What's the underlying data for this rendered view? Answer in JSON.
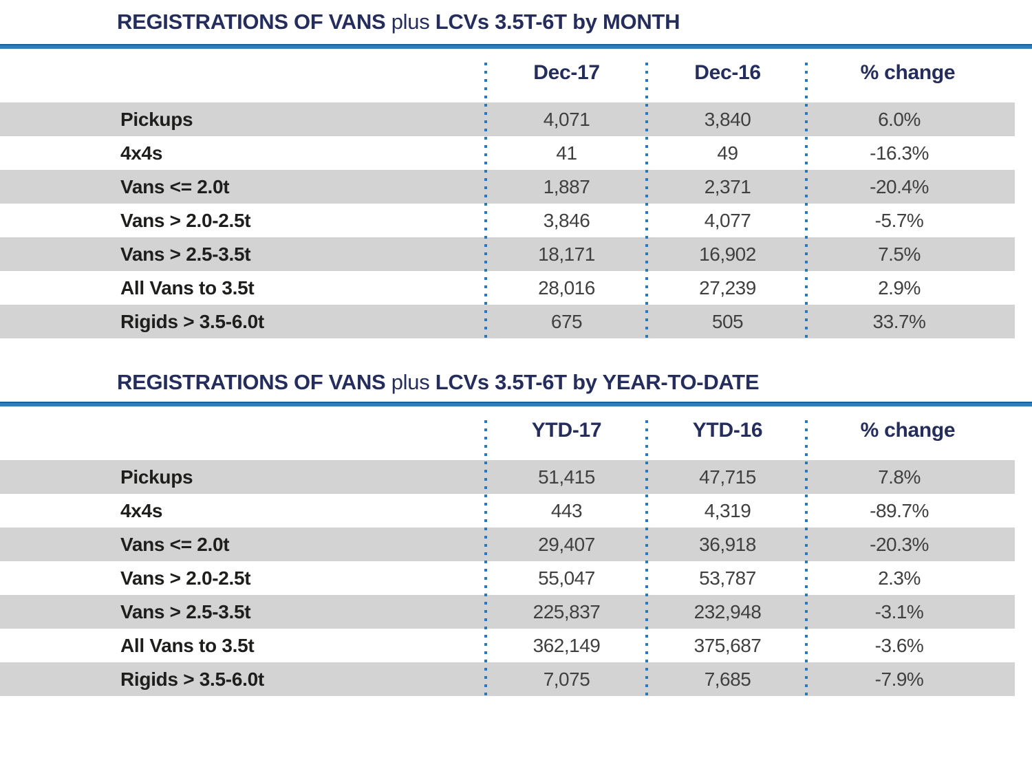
{
  "colors": {
    "navy": "#242d5c",
    "rule_blue": "#2b7fc2",
    "rule_blue_dark": "#1f5f96",
    "dot_blue": "#2e76b6",
    "row_gray": "#d3d3d4",
    "label_color": "#1e1e1c",
    "value_color": "#404040",
    "page_bg": "#ffffff"
  },
  "tables": [
    {
      "title": {
        "bold_1": "REGISTRATIONS OF VANS",
        "light": "plus",
        "bold_2": "LCVs 3.5T-6T by MONTH"
      },
      "columns": [
        "Dec-17",
        "Dec-16",
        "% change"
      ],
      "rows": [
        {
          "label": "Pickups",
          "current": "4,071",
          "previous": "3,840",
          "pct_change": "6.0%"
        },
        {
          "label": "4x4s",
          "current": "41",
          "previous": "49",
          "pct_change": "-16.3%"
        },
        {
          "label": "Vans <= 2.0t",
          "current": "1,887",
          "previous": "2,371",
          "pct_change": "-20.4%"
        },
        {
          "label": "Vans > 2.0-2.5t",
          "current": "3,846",
          "previous": "4,077",
          "pct_change": "-5.7%"
        },
        {
          "label": "Vans > 2.5-3.5t",
          "current": "18,171",
          "previous": "16,902",
          "pct_change": "7.5%"
        },
        {
          "label": "All Vans to 3.5t",
          "current": "28,016",
          "previous": "27,239",
          "pct_change": "2.9%"
        },
        {
          "label": "Rigids > 3.5-6.0t",
          "current": "675",
          "previous": "505",
          "pct_change": "33.7%"
        }
      ]
    },
    {
      "title": {
        "bold_1": "REGISTRATIONS OF VANS",
        "light": "plus",
        "bold_2": "LCVs 3.5T-6T by YEAR-TO-DATE"
      },
      "columns": [
        "YTD-17",
        "YTD-16",
        "% change"
      ],
      "rows": [
        {
          "label": "Pickups",
          "current": "51,415",
          "previous": "47,715",
          "pct_change": "7.8%"
        },
        {
          "label": "4x4s",
          "current": "443",
          "previous": "4,319",
          "pct_change": "-89.7%"
        },
        {
          "label": "Vans <= 2.0t",
          "current": "29,407",
          "previous": "36,918",
          "pct_change": "-20.3%"
        },
        {
          "label": "Vans > 2.0-2.5t",
          "current": "55,047",
          "previous": "53,787",
          "pct_change": "2.3%"
        },
        {
          "label": "Vans > 2.5-3.5t",
          "current": "225,837",
          "previous": "232,948",
          "pct_change": "-3.1%"
        },
        {
          "label": "All Vans to 3.5t",
          "current": "362,149",
          "previous": "375,687",
          "pct_change": "-3.6%"
        },
        {
          "label": "Rigids > 3.5-6.0t",
          "current": "7,075",
          "previous": "7,685",
          "pct_change": "-7.9%"
        }
      ]
    }
  ]
}
